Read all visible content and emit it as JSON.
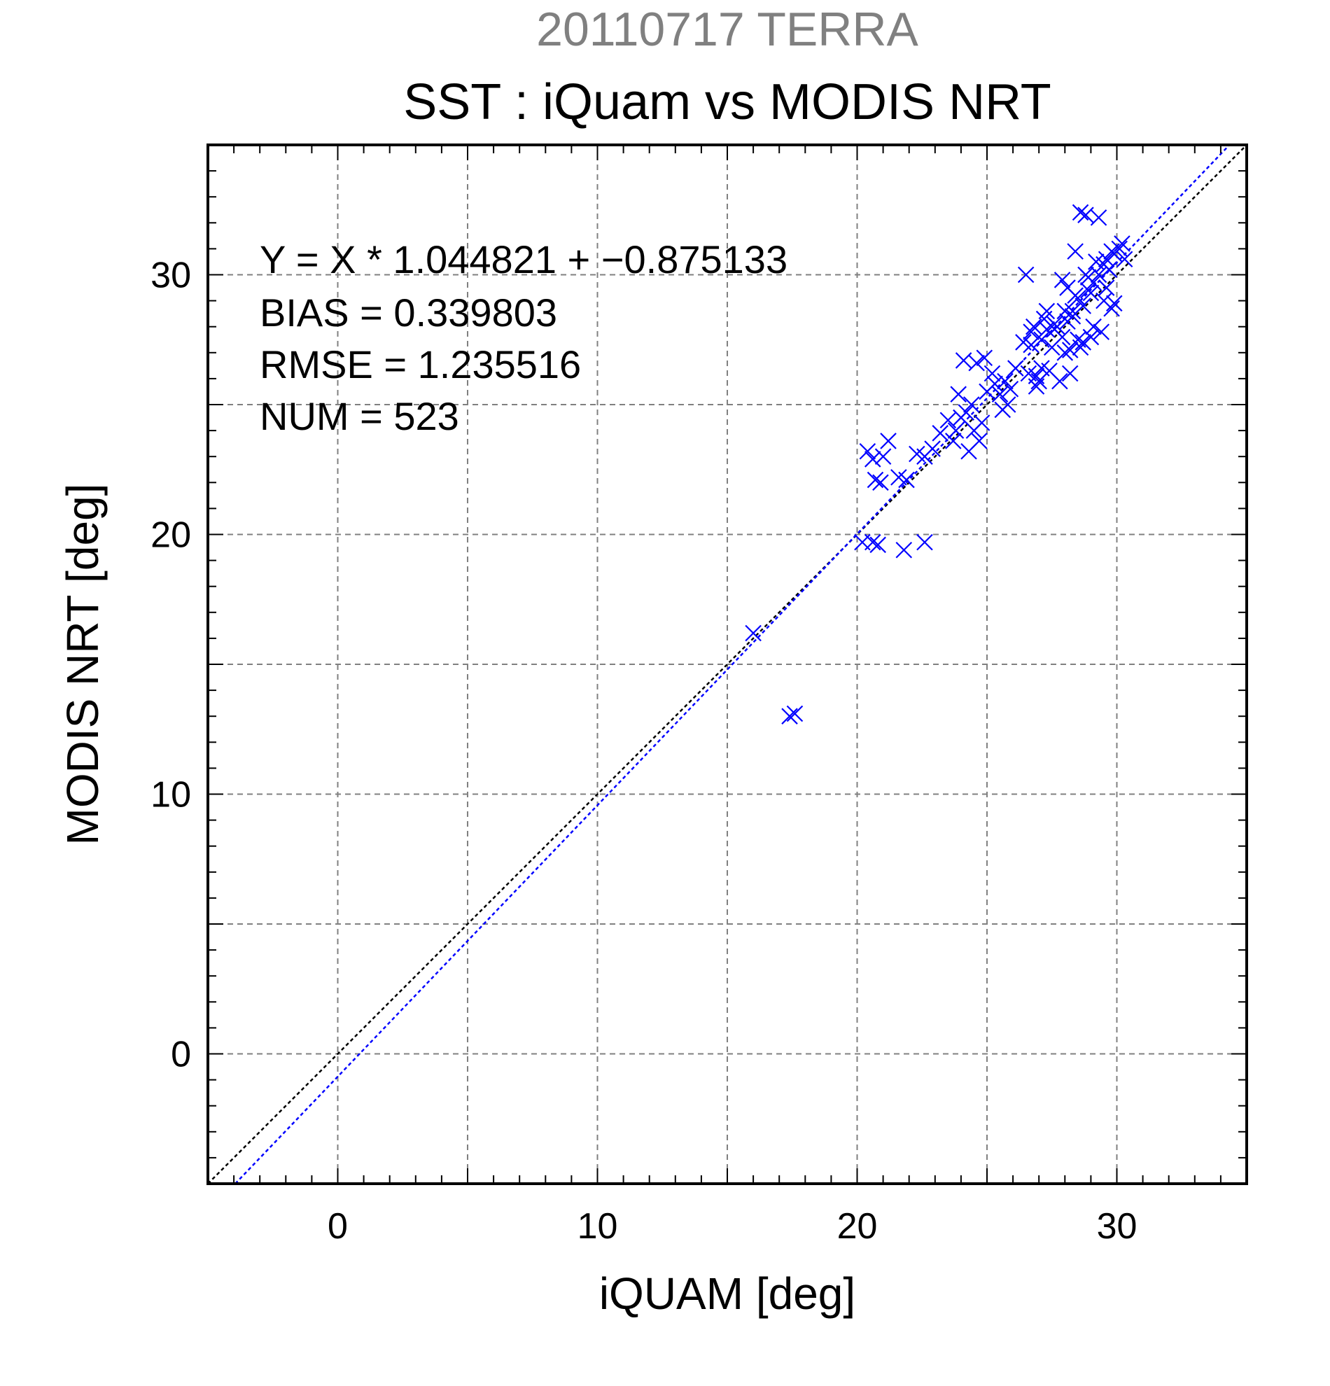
{
  "header": {
    "supertitle": "20110717 TERRA",
    "title": "SST : iQuam vs MODIS NRT"
  },
  "stats": {
    "regression": "Y = X * 1.044821 + −0.875133",
    "bias": "BIAS = 0.339803",
    "rmse": "RMSE = 1.235516",
    "num": "NUM = 523"
  },
  "chart_data": {
    "type": "scatter",
    "xlabel": "iQUAM [deg]",
    "ylabel": "MODIS NRT [deg]",
    "xlim": [
      -5,
      35
    ],
    "ylim": [
      -5,
      35
    ],
    "xticks": [
      0,
      10,
      20,
      30
    ],
    "yticks": [
      0,
      10,
      20,
      30
    ],
    "grid": true,
    "marker": "x",
    "colors": {
      "points": "#0000ff",
      "fit_line": "#0000ff",
      "identity_line": "#000000",
      "grid": "#808080"
    },
    "fit": {
      "slope": 1.044821,
      "intercept": -0.875133
    },
    "identity": {
      "slope": 1,
      "intercept": 0
    },
    "x": [
      16.0,
      17.4,
      17.6,
      20.2,
      20.6,
      20.8,
      21.8,
      22.6,
      20.4,
      20.7,
      20.9,
      20.6,
      21.0,
      21.2,
      21.6,
      21.9,
      22.3,
      22.6,
      22.9,
      23.2,
      23.5,
      23.8,
      24.0,
      24.2,
      24.5,
      24.8,
      24.3,
      23.7,
      24.6,
      24.9,
      23.9,
      24.4,
      25.0,
      25.3,
      25.5,
      25.7,
      25.9,
      25.2,
      25.6,
      24.1,
      24.7,
      25.8,
      26.1,
      26.4,
      26.7,
      26.9,
      27.1,
      27.3,
      27.5,
      27.7,
      27.9,
      28.1,
      28.3,
      28.5,
      28.7,
      28.9,
      29.1,
      29.3,
      29.5,
      29.7,
      29.9,
      30.1,
      26.6,
      27.0,
      27.4,
      27.8,
      28.2,
      28.6,
      29.0,
      29.4,
      29.8,
      26.8,
      27.2,
      27.6,
      28.0,
      28.4,
      28.8,
      29.2,
      29.6,
      26.5,
      27.3,
      28.1,
      28.9,
      29.7,
      27.6,
      28.3,
      29.0,
      26.7,
      28.0,
      29.6,
      29.8,
      30.2,
      30.3,
      29.9,
      28.5,
      28.2,
      27.1,
      26.9,
      28.6,
      29.3,
      28.8,
      27.9,
      28.4,
      29.1,
      29.5,
      28.7
    ],
    "y": [
      16.2,
      13.0,
      13.1,
      19.7,
      19.7,
      19.6,
      19.4,
      19.7,
      23.2,
      22.1,
      22.0,
      22.9,
      23.0,
      23.6,
      22.2,
      22.1,
      23.1,
      23.0,
      23.3,
      23.9,
      24.4,
      24.0,
      24.5,
      24.7,
      24.0,
      24.3,
      23.2,
      23.6,
      26.6,
      26.8,
      25.4,
      25.0,
      25.5,
      25.8,
      25.4,
      25.9,
      25.6,
      26.2,
      24.8,
      26.7,
      23.6,
      25.0,
      26.4,
      27.4,
      27.8,
      26.1,
      27.5,
      27.9,
      27.2,
      28.0,
      27.6,
      28.2,
      28.6,
      29.1,
      28.8,
      29.4,
      29.7,
      30.0,
      30.4,
      30.2,
      30.8,
      31.0,
      26.2,
      25.9,
      26.3,
      25.9,
      26.2,
      27.2,
      27.6,
      27.8,
      28.7,
      28.0,
      28.3,
      27.9,
      28.6,
      29.2,
      30.0,
      30.5,
      30.6,
      30.0,
      28.6,
      29.5,
      29.9,
      30.2,
      28.1,
      28.4,
      29.3,
      27.3,
      27.0,
      29.5,
      30.9,
      31.2,
      30.6,
      28.9,
      27.5,
      27.1,
      26.4,
      25.7,
      32.4,
      32.2,
      32.3,
      29.8,
      30.9,
      28.0,
      29.0,
      27.4
    ]
  }
}
